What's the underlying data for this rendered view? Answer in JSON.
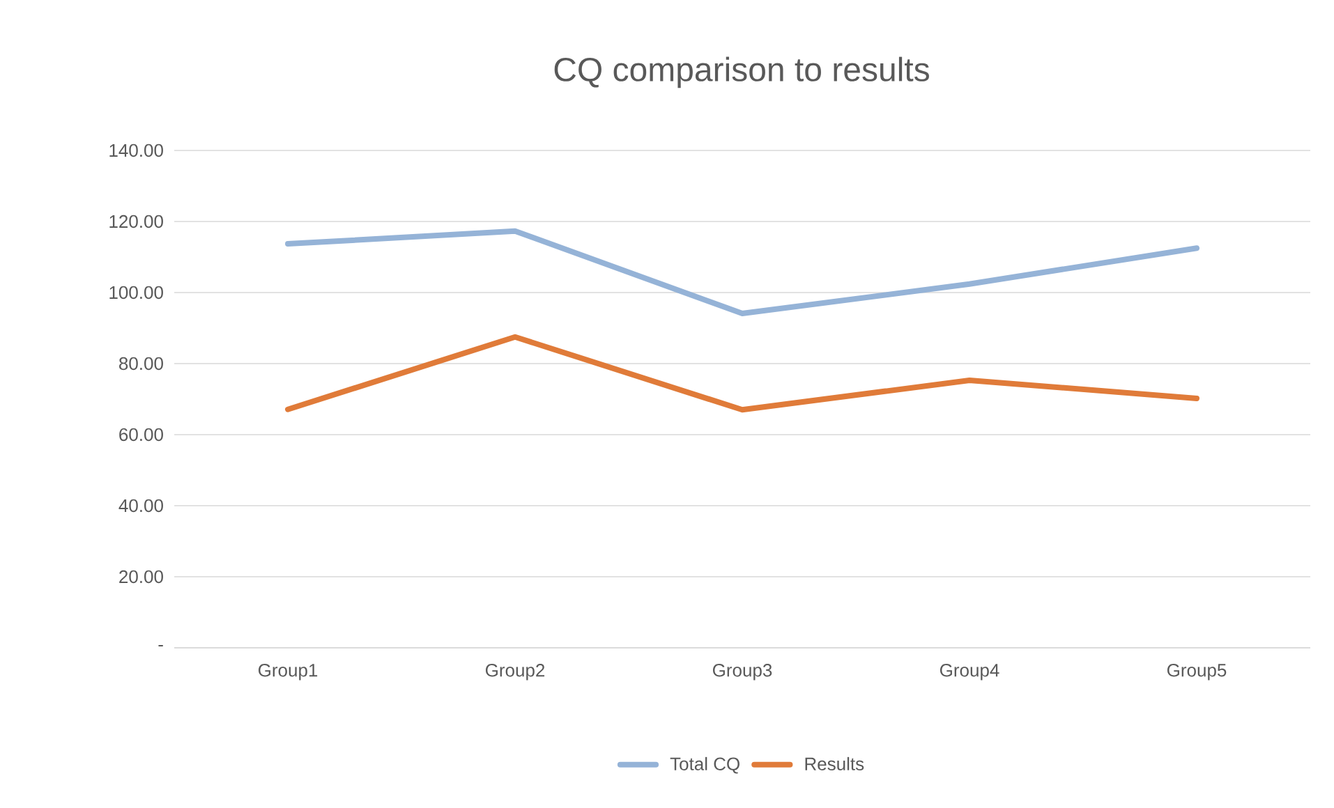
{
  "chart_data": {
    "type": "line",
    "title": "CQ comparison to results",
    "categories": [
      "Group1",
      "Group2",
      "Group3",
      "Group4",
      "Group5"
    ],
    "series": [
      {
        "name": "Total CQ",
        "color": "#95b3d7",
        "values": [
          113.7,
          117.3,
          94.1,
          102.4,
          112.5
        ]
      },
      {
        "name": "Results",
        "color": "#e07b39",
        "values": [
          67.1,
          87.5,
          67.0,
          75.3,
          70.2
        ]
      }
    ],
    "ylim": [
      0,
      140
    ],
    "yticks": [
      {
        "value": 0,
        "label": "-"
      },
      {
        "value": 20,
        "label": "20.00"
      },
      {
        "value": 40,
        "label": "40.00"
      },
      {
        "value": 60,
        "label": "60.00"
      },
      {
        "value": 80,
        "label": "80.00"
      },
      {
        "value": 100,
        "label": "100.00"
      },
      {
        "value": 120,
        "label": "120.00"
      },
      {
        "value": 140,
        "label": "140.00"
      }
    ],
    "grid": "y",
    "legend": "bottom",
    "marker": "none",
    "line_style": "solid"
  }
}
